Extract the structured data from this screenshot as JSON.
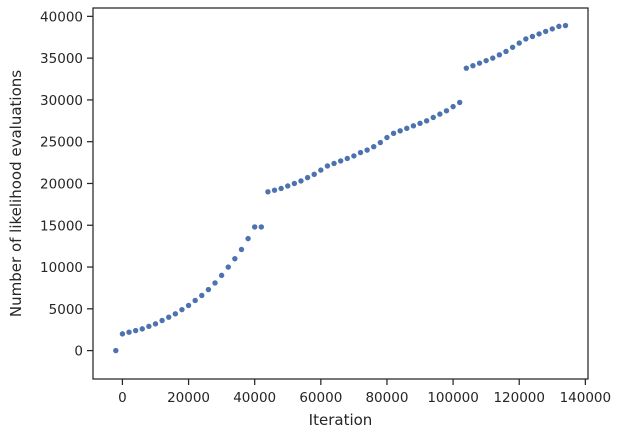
{
  "chart_data": {
    "type": "scatter",
    "xlabel": "Iteration",
    "ylabel": "Number of likelihood evaluations",
    "xlim": [
      -8900,
      140800
    ],
    "ylim": [
      -3400,
      41000
    ],
    "xticks": [
      0,
      20000,
      40000,
      60000,
      80000,
      100000,
      120000,
      140000
    ],
    "yticks": [
      0,
      5000,
      10000,
      15000,
      20000,
      25000,
      30000,
      35000,
      40000
    ],
    "grid": false,
    "marker_color": "#4c72b0",
    "series": [
      {
        "points": [
          [
            -2000,
            0
          ],
          [
            0,
            2000
          ],
          [
            2000,
            2200
          ],
          [
            4000,
            2400
          ],
          [
            6000,
            2600
          ],
          [
            8000,
            2900
          ],
          [
            10000,
            3200
          ],
          [
            12000,
            3600
          ],
          [
            14000,
            4000
          ],
          [
            16000,
            4400
          ],
          [
            18000,
            4900
          ],
          [
            20000,
            5400
          ],
          [
            22000,
            6000
          ],
          [
            24000,
            6600
          ],
          [
            26000,
            7300
          ],
          [
            28000,
            8100
          ],
          [
            30000,
            9000
          ],
          [
            32000,
            10000
          ],
          [
            34000,
            11000
          ],
          [
            36000,
            12100
          ],
          [
            38000,
            13400
          ],
          [
            40000,
            14800
          ],
          [
            42000,
            14800
          ],
          [
            44000,
            19000
          ],
          [
            46000,
            19200
          ],
          [
            48000,
            19400
          ],
          [
            50000,
            19700
          ],
          [
            52000,
            20000
          ],
          [
            54000,
            20300
          ],
          [
            56000,
            20700
          ],
          [
            58000,
            21100
          ],
          [
            60000,
            21600
          ],
          [
            62000,
            22100
          ],
          [
            64000,
            22400
          ],
          [
            66000,
            22700
          ],
          [
            68000,
            23000
          ],
          [
            70000,
            23300
          ],
          [
            72000,
            23700
          ],
          [
            74000,
            24000
          ],
          [
            76000,
            24400
          ],
          [
            78000,
            24900
          ],
          [
            80000,
            25500
          ],
          [
            82000,
            26000
          ],
          [
            84000,
            26300
          ],
          [
            86000,
            26600
          ],
          [
            88000,
            26900
          ],
          [
            90000,
            27200
          ],
          [
            92000,
            27500
          ],
          [
            94000,
            27900
          ],
          [
            96000,
            28300
          ],
          [
            98000,
            28700
          ],
          [
            100000,
            29200
          ],
          [
            102000,
            29700
          ],
          [
            104000,
            33800
          ],
          [
            106000,
            34100
          ],
          [
            108000,
            34400
          ],
          [
            110000,
            34700
          ],
          [
            112000,
            35000
          ],
          [
            114000,
            35400
          ],
          [
            116000,
            35800
          ],
          [
            118000,
            36300
          ],
          [
            120000,
            36800
          ],
          [
            122000,
            37300
          ],
          [
            124000,
            37600
          ],
          [
            126000,
            37900
          ],
          [
            128000,
            38200
          ],
          [
            130000,
            38500
          ],
          [
            132000,
            38800
          ],
          [
            134000,
            38900
          ]
        ]
      }
    ]
  }
}
